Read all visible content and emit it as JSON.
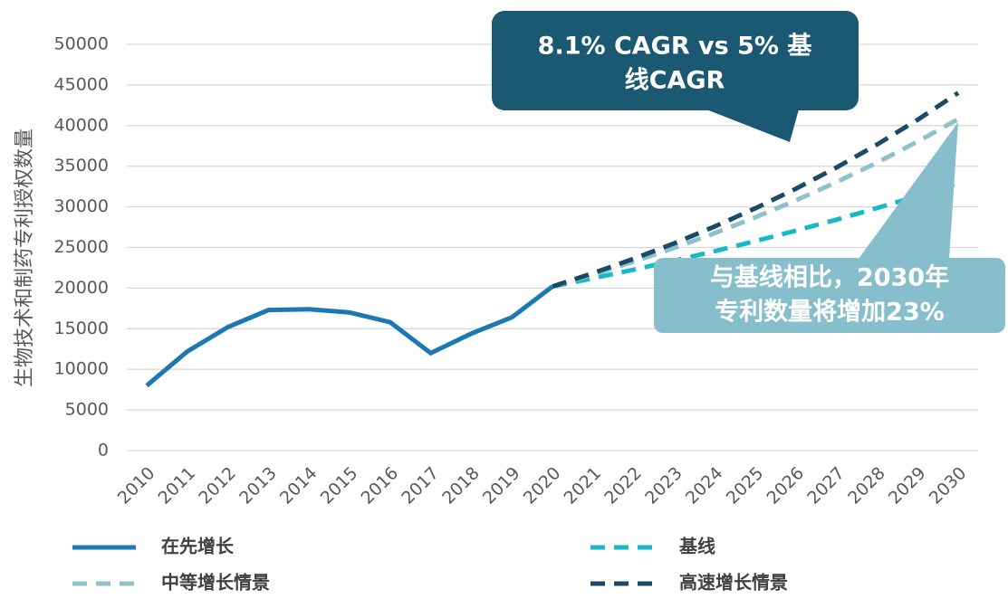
{
  "chart_data": {
    "type": "line",
    "y_label": "生物技术和制药专利授权数量",
    "categories": [
      "2010",
      "2011",
      "2012",
      "2013",
      "2014",
      "2015",
      "2016",
      "2017",
      "2018",
      "2019",
      "2020",
      "2021",
      "2022",
      "2023",
      "2024",
      "2025",
      "2026",
      "2027",
      "2028",
      "2029",
      "2030"
    ],
    "series": [
      {
        "name": "在先增长",
        "color": "#1b78b2",
        "dash": false,
        "values": [
          8000,
          12200,
          15200,
          17300,
          17400,
          17000,
          15800,
          12000,
          14400,
          16400,
          20200,
          null,
          null,
          null,
          null,
          null,
          null,
          null,
          null,
          null,
          null
        ]
      },
      {
        "name": "基线",
        "color": "#19b8c9",
        "dash": true,
        "values": [
          null,
          null,
          null,
          null,
          null,
          null,
          null,
          null,
          null,
          null,
          20200,
          21210,
          22270,
          23380,
          24550,
          25780,
          27070,
          28420,
          29850,
          31340,
          32900
        ]
      },
      {
        "name": "中等增长情景",
        "color": "#8fc1cb",
        "dash": true,
        "values": [
          null,
          null,
          null,
          null,
          null,
          null,
          null,
          null,
          null,
          null,
          20200,
          21670,
          23250,
          24940,
          26760,
          28710,
          30800,
          33040,
          35450,
          38030,
          40800
        ]
      },
      {
        "name": "高速增长情景",
        "color": "#1b4a66",
        "dash": true,
        "values": [
          null,
          null,
          null,
          null,
          null,
          null,
          null,
          null,
          null,
          null,
          20200,
          21840,
          23600,
          25510,
          27580,
          29820,
          32230,
          34840,
          37670,
          40720,
          44020
        ]
      }
    ],
    "ylim": [
      0,
      50000
    ],
    "yticks": [
      0,
      5000,
      10000,
      15000,
      20000,
      25000,
      30000,
      35000,
      40000,
      45000,
      50000
    ],
    "grid": true,
    "annotations": [
      {
        "lines": [
          "8.1% CAGR vs 5% 基",
          "线CAGR"
        ],
        "color": "#1b5872"
      },
      {
        "lines": [
          "与基线相比，2030年",
          "专利数量将增加23%"
        ],
        "color": "#86bfcb"
      }
    ]
  }
}
